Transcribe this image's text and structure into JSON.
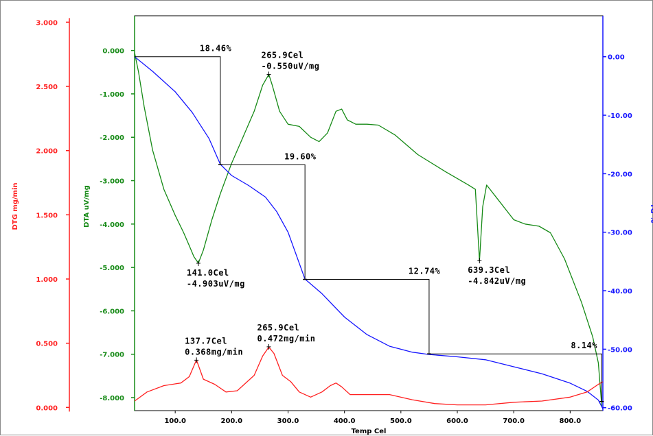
{
  "chart_data": {
    "type": "line",
    "colors": {
      "dtg": "#ff2020",
      "dta": "#168a16",
      "tg": "#1515ff",
      "frame": "#000000"
    },
    "xlabel": "Temp Cel",
    "xlim": [
      28,
      858
    ],
    "x_ticks": [
      {
        "v": 100,
        "label": "100.0"
      },
      {
        "v": 200,
        "label": "200.0"
      },
      {
        "v": 300,
        "label": "300.0"
      },
      {
        "v": 400,
        "label": "400.0"
      },
      {
        "v": 500,
        "label": "500.0"
      },
      {
        "v": 600,
        "label": "600.0"
      },
      {
        "v": 700,
        "label": "700.0"
      },
      {
        "v": 800,
        "label": "800.0"
      }
    ],
    "axes": {
      "dtg": {
        "label": "DTG mg/min",
        "lim": [
          -0.025,
          3.05
        ],
        "ticks": [
          {
            "v": 0,
            "label": "0.000"
          },
          {
            "v": 0.5,
            "label": "0.500"
          },
          {
            "v": 1.0,
            "label": "1.000"
          },
          {
            "v": 1.5,
            "label": "1.500"
          },
          {
            "v": 2.0,
            "label": "2.000"
          },
          {
            "v": 2.5,
            "label": "2.500"
          },
          {
            "v": 3.0,
            "label": "3.000"
          }
        ]
      },
      "dta": {
        "label": "DTA uV/mg",
        "lim": [
          -8.3,
          0.8
        ],
        "ticks": [
          {
            "v": 0,
            "label": "0.000"
          },
          {
            "v": -1,
            "label": "-1.000"
          },
          {
            "v": -2,
            "label": "-2.000"
          },
          {
            "v": -3,
            "label": "-3.000"
          },
          {
            "v": -4,
            "label": "-4.000"
          },
          {
            "v": -5,
            "label": "-5.000"
          },
          {
            "v": -6,
            "label": "-6.000"
          },
          {
            "v": -7,
            "label": "-7.000"
          },
          {
            "v": -8,
            "label": "-8.000"
          }
        ]
      },
      "tg": {
        "label": "TG %",
        "lim": [
          -60.5,
          7.0
        ],
        "ticks": [
          {
            "v": 0,
            "label": "0.00"
          },
          {
            "v": -10,
            "label": "-10.00"
          },
          {
            "v": -20,
            "label": "-20.00"
          },
          {
            "v": -30,
            "label": "-30.00"
          },
          {
            "v": -40,
            "label": "-40.00"
          },
          {
            "v": -50,
            "label": "-50.00"
          },
          {
            "v": -60,
            "label": "-60.00"
          }
        ]
      }
    },
    "series": [
      {
        "id": "dta",
        "axis": "dta",
        "points": [
          [
            28,
            -0.05
          ],
          [
            35,
            -0.5
          ],
          [
            45,
            -1.3
          ],
          [
            60,
            -2.3
          ],
          [
            80,
            -3.2
          ],
          [
            100,
            -3.8
          ],
          [
            115,
            -4.2
          ],
          [
            125,
            -4.5
          ],
          [
            133,
            -4.75
          ],
          [
            141,
            -4.9
          ],
          [
            150,
            -4.6
          ],
          [
            165,
            -3.9
          ],
          [
            180,
            -3.3
          ],
          [
            200,
            -2.6
          ],
          [
            220,
            -2.0
          ],
          [
            240,
            -1.4
          ],
          [
            255,
            -0.8
          ],
          [
            265.9,
            -0.55
          ],
          [
            272,
            -0.8
          ],
          [
            285,
            -1.4
          ],
          [
            300,
            -1.7
          ],
          [
            320,
            -1.75
          ],
          [
            340,
            -2.0
          ],
          [
            355,
            -2.1
          ],
          [
            370,
            -1.9
          ],
          [
            385,
            -1.4
          ],
          [
            395,
            -1.35
          ],
          [
            405,
            -1.6
          ],
          [
            420,
            -1.7
          ],
          [
            440,
            -1.7
          ],
          [
            460,
            -1.72
          ],
          [
            490,
            -1.95
          ],
          [
            530,
            -2.4
          ],
          [
            580,
            -2.8
          ],
          [
            620,
            -3.1
          ],
          [
            632,
            -3.2
          ],
          [
            639.3,
            -4.85
          ],
          [
            645,
            -3.6
          ],
          [
            652,
            -3.1
          ],
          [
            670,
            -3.4
          ],
          [
            700,
            -3.9
          ],
          [
            720,
            -4.0
          ],
          [
            745,
            -4.05
          ],
          [
            765,
            -4.2
          ],
          [
            790,
            -4.8
          ],
          [
            820,
            -5.8
          ],
          [
            840,
            -6.6
          ],
          [
            850,
            -7.2
          ],
          [
            856,
            -8.2
          ]
        ]
      },
      {
        "id": "tg",
        "axis": "tg",
        "points": [
          [
            28,
            0.0
          ],
          [
            60,
            -2.5
          ],
          [
            100,
            -6.0
          ],
          [
            130,
            -9.5
          ],
          [
            160,
            -14.0
          ],
          [
            180,
            -18.4
          ],
          [
            200,
            -20.3
          ],
          [
            230,
            -22.0
          ],
          [
            260,
            -24.0
          ],
          [
            280,
            -26.5
          ],
          [
            300,
            -30.0
          ],
          [
            330,
            -38.0
          ],
          [
            360,
            -40.5
          ],
          [
            400,
            -44.5
          ],
          [
            440,
            -47.5
          ],
          [
            480,
            -49.5
          ],
          [
            520,
            -50.5
          ],
          [
            550,
            -50.9
          ],
          [
            600,
            -51.3
          ],
          [
            650,
            -51.8
          ],
          [
            700,
            -53.0
          ],
          [
            750,
            -54.2
          ],
          [
            800,
            -55.8
          ],
          [
            830,
            -57.2
          ],
          [
            850,
            -58.7
          ],
          [
            858,
            -60.2
          ]
        ]
      },
      {
        "id": "dtg",
        "axis": "dtg",
        "points": [
          [
            28,
            0.05
          ],
          [
            50,
            0.12
          ],
          [
            80,
            0.17
          ],
          [
            110,
            0.19
          ],
          [
            125,
            0.24
          ],
          [
            137.7,
            0.37
          ],
          [
            150,
            0.22
          ],
          [
            170,
            0.18
          ],
          [
            190,
            0.12
          ],
          [
            210,
            0.13
          ],
          [
            240,
            0.25
          ],
          [
            255,
            0.4
          ],
          [
            265.9,
            0.47
          ],
          [
            275,
            0.42
          ],
          [
            290,
            0.25
          ],
          [
            305,
            0.2
          ],
          [
            320,
            0.12
          ],
          [
            340,
            0.08
          ],
          [
            360,
            0.12
          ],
          [
            375,
            0.17
          ],
          [
            385,
            0.19
          ],
          [
            395,
            0.16
          ],
          [
            410,
            0.1
          ],
          [
            440,
            0.1
          ],
          [
            480,
            0.1
          ],
          [
            520,
            0.06
          ],
          [
            560,
            0.03
          ],
          [
            600,
            0.02
          ],
          [
            650,
            0.02
          ],
          [
            700,
            0.04
          ],
          [
            750,
            0.05
          ],
          [
            800,
            0.08
          ],
          [
            830,
            0.12
          ],
          [
            850,
            0.18
          ],
          [
            858,
            0.2
          ]
        ]
      }
    ],
    "annotations": [
      {
        "name": "dta-peak-141",
        "x": 141.0,
        "axis": "dta",
        "y": -4.903,
        "lines": [
          "141.0Cel",
          "-4.903uV/mg"
        ],
        "pos": "below"
      },
      {
        "name": "dta-peak-265",
        "x": 265.9,
        "axis": "dta",
        "y": -0.55,
        "lines": [
          "265.9Cel",
          "-0.550uV/mg"
        ],
        "pos": "above"
      },
      {
        "name": "dta-peak-639",
        "x": 639.3,
        "axis": "dta",
        "y": -4.842,
        "lines": [
          "639.3Cel",
          "-4.842uV/mg"
        ],
        "pos": "below"
      },
      {
        "name": "dtg-peak-137",
        "x": 137.7,
        "axis": "dtg",
        "y": 0.368,
        "lines": [
          "137.7Cel",
          "0.368mg/min"
        ],
        "pos": "above"
      },
      {
        "name": "dtg-peak-265",
        "x": 265.9,
        "axis": "dtg",
        "y": 0.472,
        "lines": [
          "265.9Cel",
          "0.472mg/min"
        ],
        "pos": "above"
      }
    ],
    "steps": [
      {
        "name": "step-1",
        "x1": 28,
        "y1": 0.0,
        "x2": 180,
        "y2": -18.46,
        "label": "18.46%"
      },
      {
        "name": "step-2",
        "x1": 180,
        "y1": -18.46,
        "x2": 330,
        "y2": -38.06,
        "label": "19.60%"
      },
      {
        "name": "step-3",
        "x1": 330,
        "y1": -38.06,
        "x2": 550,
        "y2": -50.8,
        "label": "12.74%"
      },
      {
        "name": "step-4",
        "x1": 550,
        "y1": -50.8,
        "x2": 856,
        "y2": -58.94,
        "label": "8.14%"
      }
    ]
  }
}
